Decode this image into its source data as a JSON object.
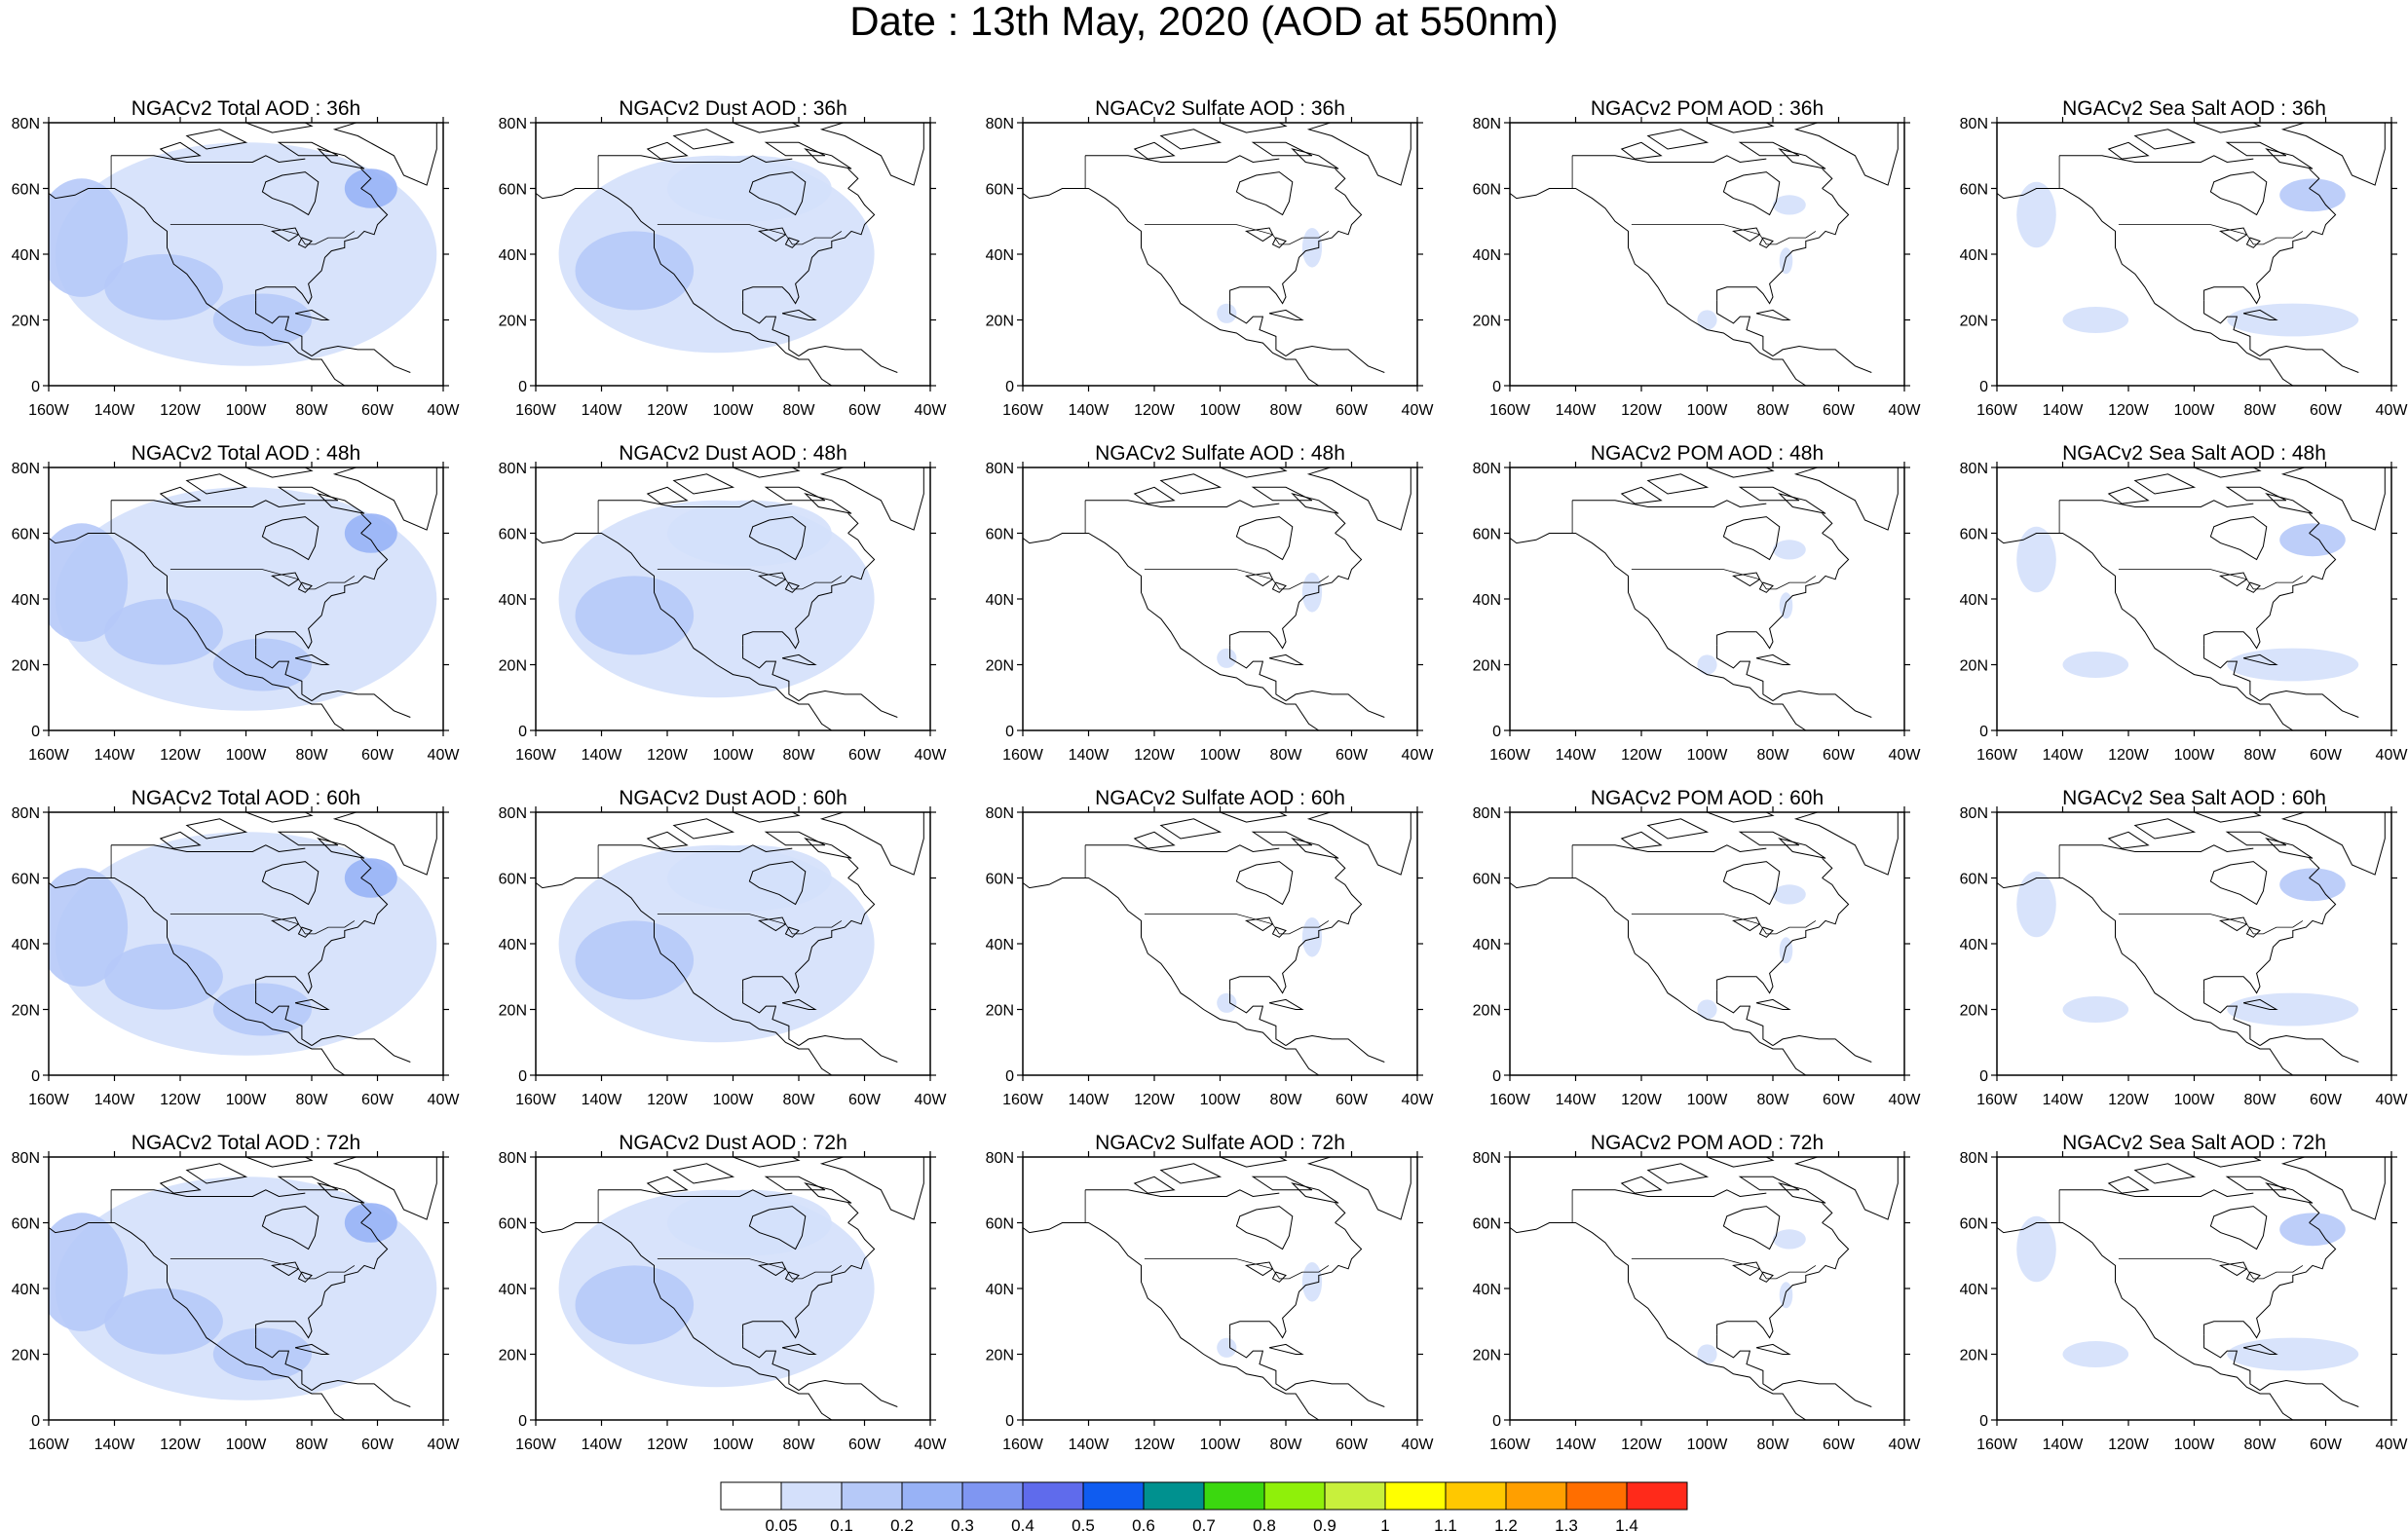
{
  "title": "Date : 13th May, 2020 (AOD at 550nm)",
  "lat_ticks": [
    "80N",
    "60N",
    "40N",
    "20N",
    "0"
  ],
  "lon_ticks": [
    "160W",
    "140W",
    "120W",
    "100W",
    "80W",
    "60W",
    "40W"
  ],
  "panels": [
    {
      "title": "NGACv2 Total AOD : 36h",
      "species": "total",
      "hour": 36
    },
    {
      "title": "NGACv2 Dust AOD : 36h",
      "species": "dust",
      "hour": 36
    },
    {
      "title": "NGACv2 Sulfate AOD : 36h",
      "species": "sulfate",
      "hour": 36
    },
    {
      "title": "NGACv2 POM AOD : 36h",
      "species": "pom",
      "hour": 36
    },
    {
      "title": "NGACv2 Sea Salt AOD : 36h",
      "species": "seasalt",
      "hour": 36
    },
    {
      "title": "NGACv2 Total AOD : 48h",
      "species": "total",
      "hour": 48
    },
    {
      "title": "NGACv2 Dust AOD : 48h",
      "species": "dust",
      "hour": 48
    },
    {
      "title": "NGACv2 Sulfate AOD : 48h",
      "species": "sulfate",
      "hour": 48
    },
    {
      "title": "NGACv2 POM AOD : 48h",
      "species": "pom",
      "hour": 48
    },
    {
      "title": "NGACv2 Sea Salt AOD : 48h",
      "species": "seasalt",
      "hour": 48
    },
    {
      "title": "NGACv2 Total AOD : 60h",
      "species": "total",
      "hour": 60
    },
    {
      "title": "NGACv2 Dust AOD : 60h",
      "species": "dust",
      "hour": 60
    },
    {
      "title": "NGACv2 Sulfate AOD : 60h",
      "species": "sulfate",
      "hour": 60
    },
    {
      "title": "NGACv2 POM AOD : 60h",
      "species": "pom",
      "hour": 60
    },
    {
      "title": "NGACv2 Sea Salt AOD : 60h",
      "species": "seasalt",
      "hour": 60
    },
    {
      "title": "NGACv2 Total AOD : 72h",
      "species": "total",
      "hour": 72
    },
    {
      "title": "NGACv2 Dust AOD : 72h",
      "species": "dust",
      "hour": 72
    },
    {
      "title": "NGACv2 Sulfate AOD : 72h",
      "species": "sulfate",
      "hour": 72
    },
    {
      "title": "NGACv2 POM AOD : 72h",
      "species": "pom",
      "hour": 72
    },
    {
      "title": "NGACv2 Sea Salt  AOD : 72h",
      "species": "seasalt",
      "hour": 72
    }
  ],
  "colorbar": {
    "labels": [
      "0.05",
      "0.1",
      "0.2",
      "0.3",
      "0.4",
      "0.5",
      "0.6",
      "0.7",
      "0.8",
      "0.9",
      "1",
      "1.1",
      "1.2",
      "1.3",
      "1.4"
    ],
    "colors": [
      "#ffffff",
      "#d4e0fb",
      "#b6c9f8",
      "#98b2f6",
      "#7f96f2",
      "#5f6bec",
      "#0f5cf0",
      "#00918f",
      "#3bd80f",
      "#8ff00a",
      "#c8f03c",
      "#ffff00",
      "#ffc800",
      "#ff9f00",
      "#ff6e00",
      "#ff2a1a"
    ]
  }
}
